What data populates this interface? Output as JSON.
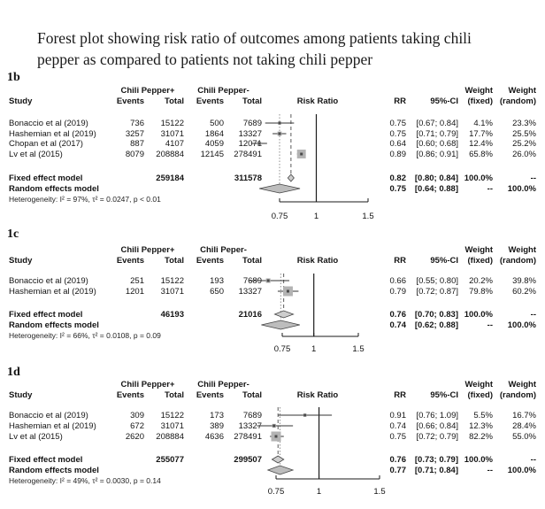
{
  "title": "Forest plot showing risk ratio of outcomes among patients taking chili pepper as compared to patients not taking chili pepper",
  "chart_data": [
    {
      "type": "forest",
      "panel_label": "1b",
      "group_headers": {
        "treatment": "Chili Pepper+",
        "control": "Chili Pepper-"
      },
      "column_headers": {
        "study": "Study",
        "events": "Events",
        "total": "Total",
        "risk_ratio": "Risk Ratio",
        "rr": "RR",
        "ci": "95%-CI",
        "weight": "Weight",
        "fixed": "(fixed)",
        "random": "(random)"
      },
      "studies": [
        {
          "name": "Bonaccio et al (2019)",
          "events_t": "736",
          "total_t": "15122",
          "events_c": "500",
          "total_c": "7689",
          "rr": 0.75,
          "ci_low": 0.67,
          "ci_high": 0.84,
          "rr_text": "0.75",
          "ci_text": "[0.67; 0.84]",
          "weight_fixed": "4.1%",
          "weight_random": "23.3%"
        },
        {
          "name": "Hashemian et al (2019)",
          "events_t": "3257",
          "total_t": "31071",
          "events_c": "1864",
          "total_c": "13327",
          "rr": 0.75,
          "ci_low": 0.71,
          "ci_high": 0.79,
          "rr_text": "0.75",
          "ci_text": "[0.71; 0.79]",
          "weight_fixed": "17.7%",
          "weight_random": "25.5%"
        },
        {
          "name": "Chopan et al (2017)",
          "events_t": "887",
          "total_t": "4107",
          "events_c": "4059",
          "total_c": "12071",
          "rr": 0.64,
          "ci_low": 0.6,
          "ci_high": 0.68,
          "rr_text": "0.64",
          "ci_text": "[0.60; 0.68]",
          "weight_fixed": "12.4%",
          "weight_random": "25.2%"
        },
        {
          "name": "Lv et al (2015)",
          "events_t": "8079",
          "total_t": "208884",
          "events_c": "12145",
          "total_c": "278491",
          "rr": 0.89,
          "ci_low": 0.86,
          "ci_high": 0.91,
          "rr_text": "0.89",
          "ci_text": "[0.86; 0.91]",
          "weight_fixed": "65.8%",
          "weight_random": "26.0%"
        }
      ],
      "fixed_effect": {
        "label": "Fixed effect model",
        "total_t": "259184",
        "total_c": "311578",
        "rr": 0.82,
        "ci_low": 0.8,
        "ci_high": 0.84,
        "rr_text": "0.82",
        "ci_text": "[0.80; 0.84]",
        "weight_fixed": "100.0%",
        "weight_random": "--"
      },
      "random_effect": {
        "label": "Random effects model",
        "rr": 0.75,
        "ci_low": 0.64,
        "ci_high": 0.88,
        "rr_text": "0.75",
        "ci_text": "[0.64; 0.88]",
        "weight_fixed": "--",
        "weight_random": "100.0%"
      },
      "heterogeneity": "Heterogeneity: I² = 97%, τ² = 0.0247, p < 0.01",
      "axis": {
        "scale": "log",
        "ticks": [
          0.75,
          1,
          1.5
        ],
        "tick_labels": [
          "0.75",
          "1",
          "1.5"
        ],
        "ref_line": 1
      }
    },
    {
      "type": "forest",
      "panel_label": "1c",
      "group_headers": {
        "treatment": "Chili Pepper+",
        "control": "Chili Peper-"
      },
      "column_headers": {
        "study": "Study",
        "events": "Events",
        "total": "Total",
        "risk_ratio": "Risk Ratio",
        "rr": "RR",
        "ci": "95%-CI",
        "weight": "Weight",
        "fixed": "(fixed)",
        "random": "(random)"
      },
      "studies": [
        {
          "name": "Bonaccio et al (2019)",
          "events_t": "251",
          "total_t": "15122",
          "events_c": "193",
          "total_c": "7689",
          "rr": 0.66,
          "ci_low": 0.55,
          "ci_high": 0.8,
          "rr_text": "0.66",
          "ci_text": "[0.55; 0.80]",
          "weight_fixed": "20.2%",
          "weight_random": "39.8%"
        },
        {
          "name": "Hashemian et al (2019)",
          "events_t": "1201",
          "total_t": "31071",
          "events_c": "650",
          "total_c": "13327",
          "rr": 0.79,
          "ci_low": 0.72,
          "ci_high": 0.87,
          "rr_text": "0.79",
          "ci_text": "[0.72; 0.87]",
          "weight_fixed": "79.8%",
          "weight_random": "60.2%"
        }
      ],
      "fixed_effect": {
        "label": "Fixed effect model",
        "total_t": "46193",
        "total_c": "21016",
        "rr": 0.76,
        "ci_low": 0.7,
        "ci_high": 0.83,
        "rr_text": "0.76",
        "ci_text": "[0.70; 0.83]",
        "weight_fixed": "100.0%",
        "weight_random": "--"
      },
      "random_effect": {
        "label": "Random effects model",
        "rr": 0.74,
        "ci_low": 0.62,
        "ci_high": 0.88,
        "rr_text": "0.74",
        "ci_text": "[0.62; 0.88]",
        "weight_fixed": "--",
        "weight_random": "100.0%"
      },
      "heterogeneity": "Heterogeneity: I² = 66%, τ² = 0.0108, p = 0.09",
      "axis": {
        "scale": "log",
        "ticks": [
          0.75,
          1,
          1.5
        ],
        "tick_labels": [
          "0.75",
          "1",
          "1.5"
        ],
        "ref_line": 1
      }
    },
    {
      "type": "forest",
      "panel_label": "1d",
      "group_headers": {
        "treatment": "Chili Pepper+",
        "control": "Chili Pepper-"
      },
      "column_headers": {
        "study": "Study",
        "events": "Events",
        "total": "Total",
        "risk_ratio": "Risk Ratio",
        "rr": "RR",
        "ci": "95%-CI",
        "weight": "Weight",
        "fixed": "(fixed)",
        "random": "(random)"
      },
      "studies": [
        {
          "name": "Bonaccio et al (2019)",
          "events_t": "309",
          "total_t": "15122",
          "events_c": "173",
          "total_c": "7689",
          "rr": 0.91,
          "ci_low": 0.76,
          "ci_high": 1.09,
          "rr_text": "0.91",
          "ci_text": "[0.76; 1.09]",
          "weight_fixed": "5.5%",
          "weight_random": "16.7%"
        },
        {
          "name": "Hashemian et al (2019)",
          "events_t": "672",
          "total_t": "31071",
          "events_c": "389",
          "total_c": "13327",
          "rr": 0.74,
          "ci_low": 0.66,
          "ci_high": 0.84,
          "rr_text": "0.74",
          "ci_text": "[0.66; 0.84]",
          "weight_fixed": "12.3%",
          "weight_random": "28.4%"
        },
        {
          "name": "Lv et al (2015)",
          "events_t": "2620",
          "total_t": "208884",
          "events_c": "4636",
          "total_c": "278491",
          "rr": 0.75,
          "ci_low": 0.72,
          "ci_high": 0.79,
          "rr_text": "0.75",
          "ci_text": "[0.72; 0.79]",
          "weight_fixed": "82.2%",
          "weight_random": "55.0%"
        }
      ],
      "fixed_effect": {
        "label": "Fixed effect model",
        "total_t": "255077",
        "total_c": "299507",
        "rr": 0.76,
        "ci_low": 0.73,
        "ci_high": 0.79,
        "rr_text": "0.76",
        "ci_text": "[0.73; 0.79]",
        "weight_fixed": "100.0%",
        "weight_random": "--"
      },
      "random_effect": {
        "label": "Random effects model",
        "rr": 0.77,
        "ci_low": 0.71,
        "ci_high": 0.84,
        "rr_text": "0.77",
        "ci_text": "[0.71; 0.84]",
        "weight_fixed": "--",
        "weight_random": "100.0%"
      },
      "heterogeneity": "Heterogeneity: I² = 49%, τ² = 0.0030, p = 0.14",
      "axis": {
        "scale": "log",
        "ticks": [
          0.75,
          1,
          1.5
        ],
        "tick_labels": [
          "0.75",
          "1",
          "1.5"
        ],
        "ref_line": 1
      }
    }
  ],
  "colors": {
    "square": "#b3b3b3",
    "marker": "#4a4a4a",
    "diamond_fixed": "#cdcdcd",
    "diamond_random": "#bdbdbd",
    "axis": "#1a1a1a",
    "ci_line": "#333333"
  }
}
